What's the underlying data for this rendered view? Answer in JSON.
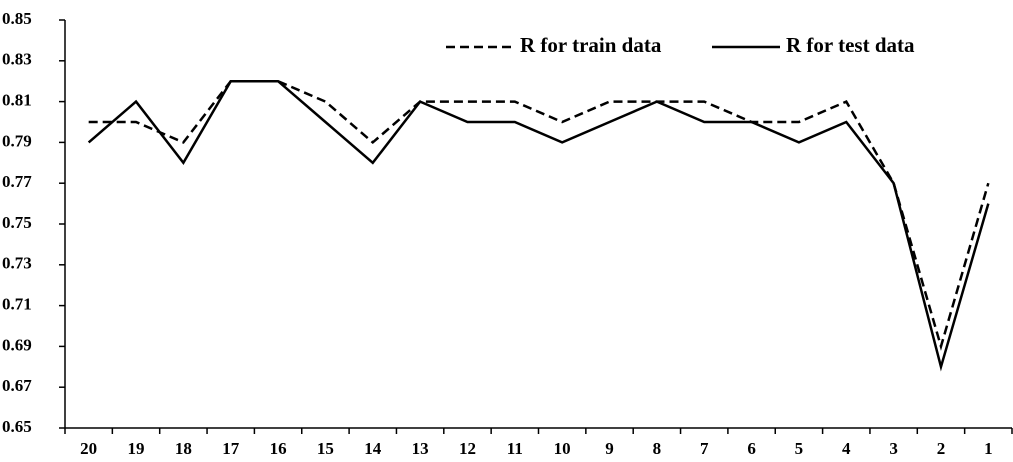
{
  "chart_data": {
    "type": "line",
    "categories": [
      "20",
      "19",
      "18",
      "17",
      "16",
      "15",
      "14",
      "13",
      "12",
      "11",
      "10",
      "9",
      "8",
      "7",
      "6",
      "5",
      "4",
      "3",
      "2",
      "1"
    ],
    "series": [
      {
        "name": "R for train data",
        "color": "#000000",
        "dash": "dashed",
        "values": [
          0.8,
          0.8,
          0.79,
          0.82,
          0.82,
          0.81,
          0.79,
          0.81,
          0.81,
          0.81,
          0.8,
          0.81,
          0.81,
          0.81,
          0.8,
          0.8,
          0.81,
          0.77,
          0.69,
          0.77
        ]
      },
      {
        "name": "R for test data",
        "color": "#000000",
        "dash": "solid",
        "values": [
          0.79,
          0.81,
          0.78,
          0.82,
          0.82,
          0.8,
          0.78,
          0.81,
          0.8,
          0.8,
          0.79,
          0.8,
          0.81,
          0.8,
          0.8,
          0.79,
          0.8,
          0.77,
          0.68,
          0.76
        ]
      }
    ],
    "ylim": [
      0.65,
      0.85
    ],
    "yticks": [
      0.65,
      0.67,
      0.69,
      0.71,
      0.73,
      0.75,
      0.77,
      0.79,
      0.81,
      0.83,
      0.85
    ],
    "grid": false,
    "legend": "top-right"
  }
}
